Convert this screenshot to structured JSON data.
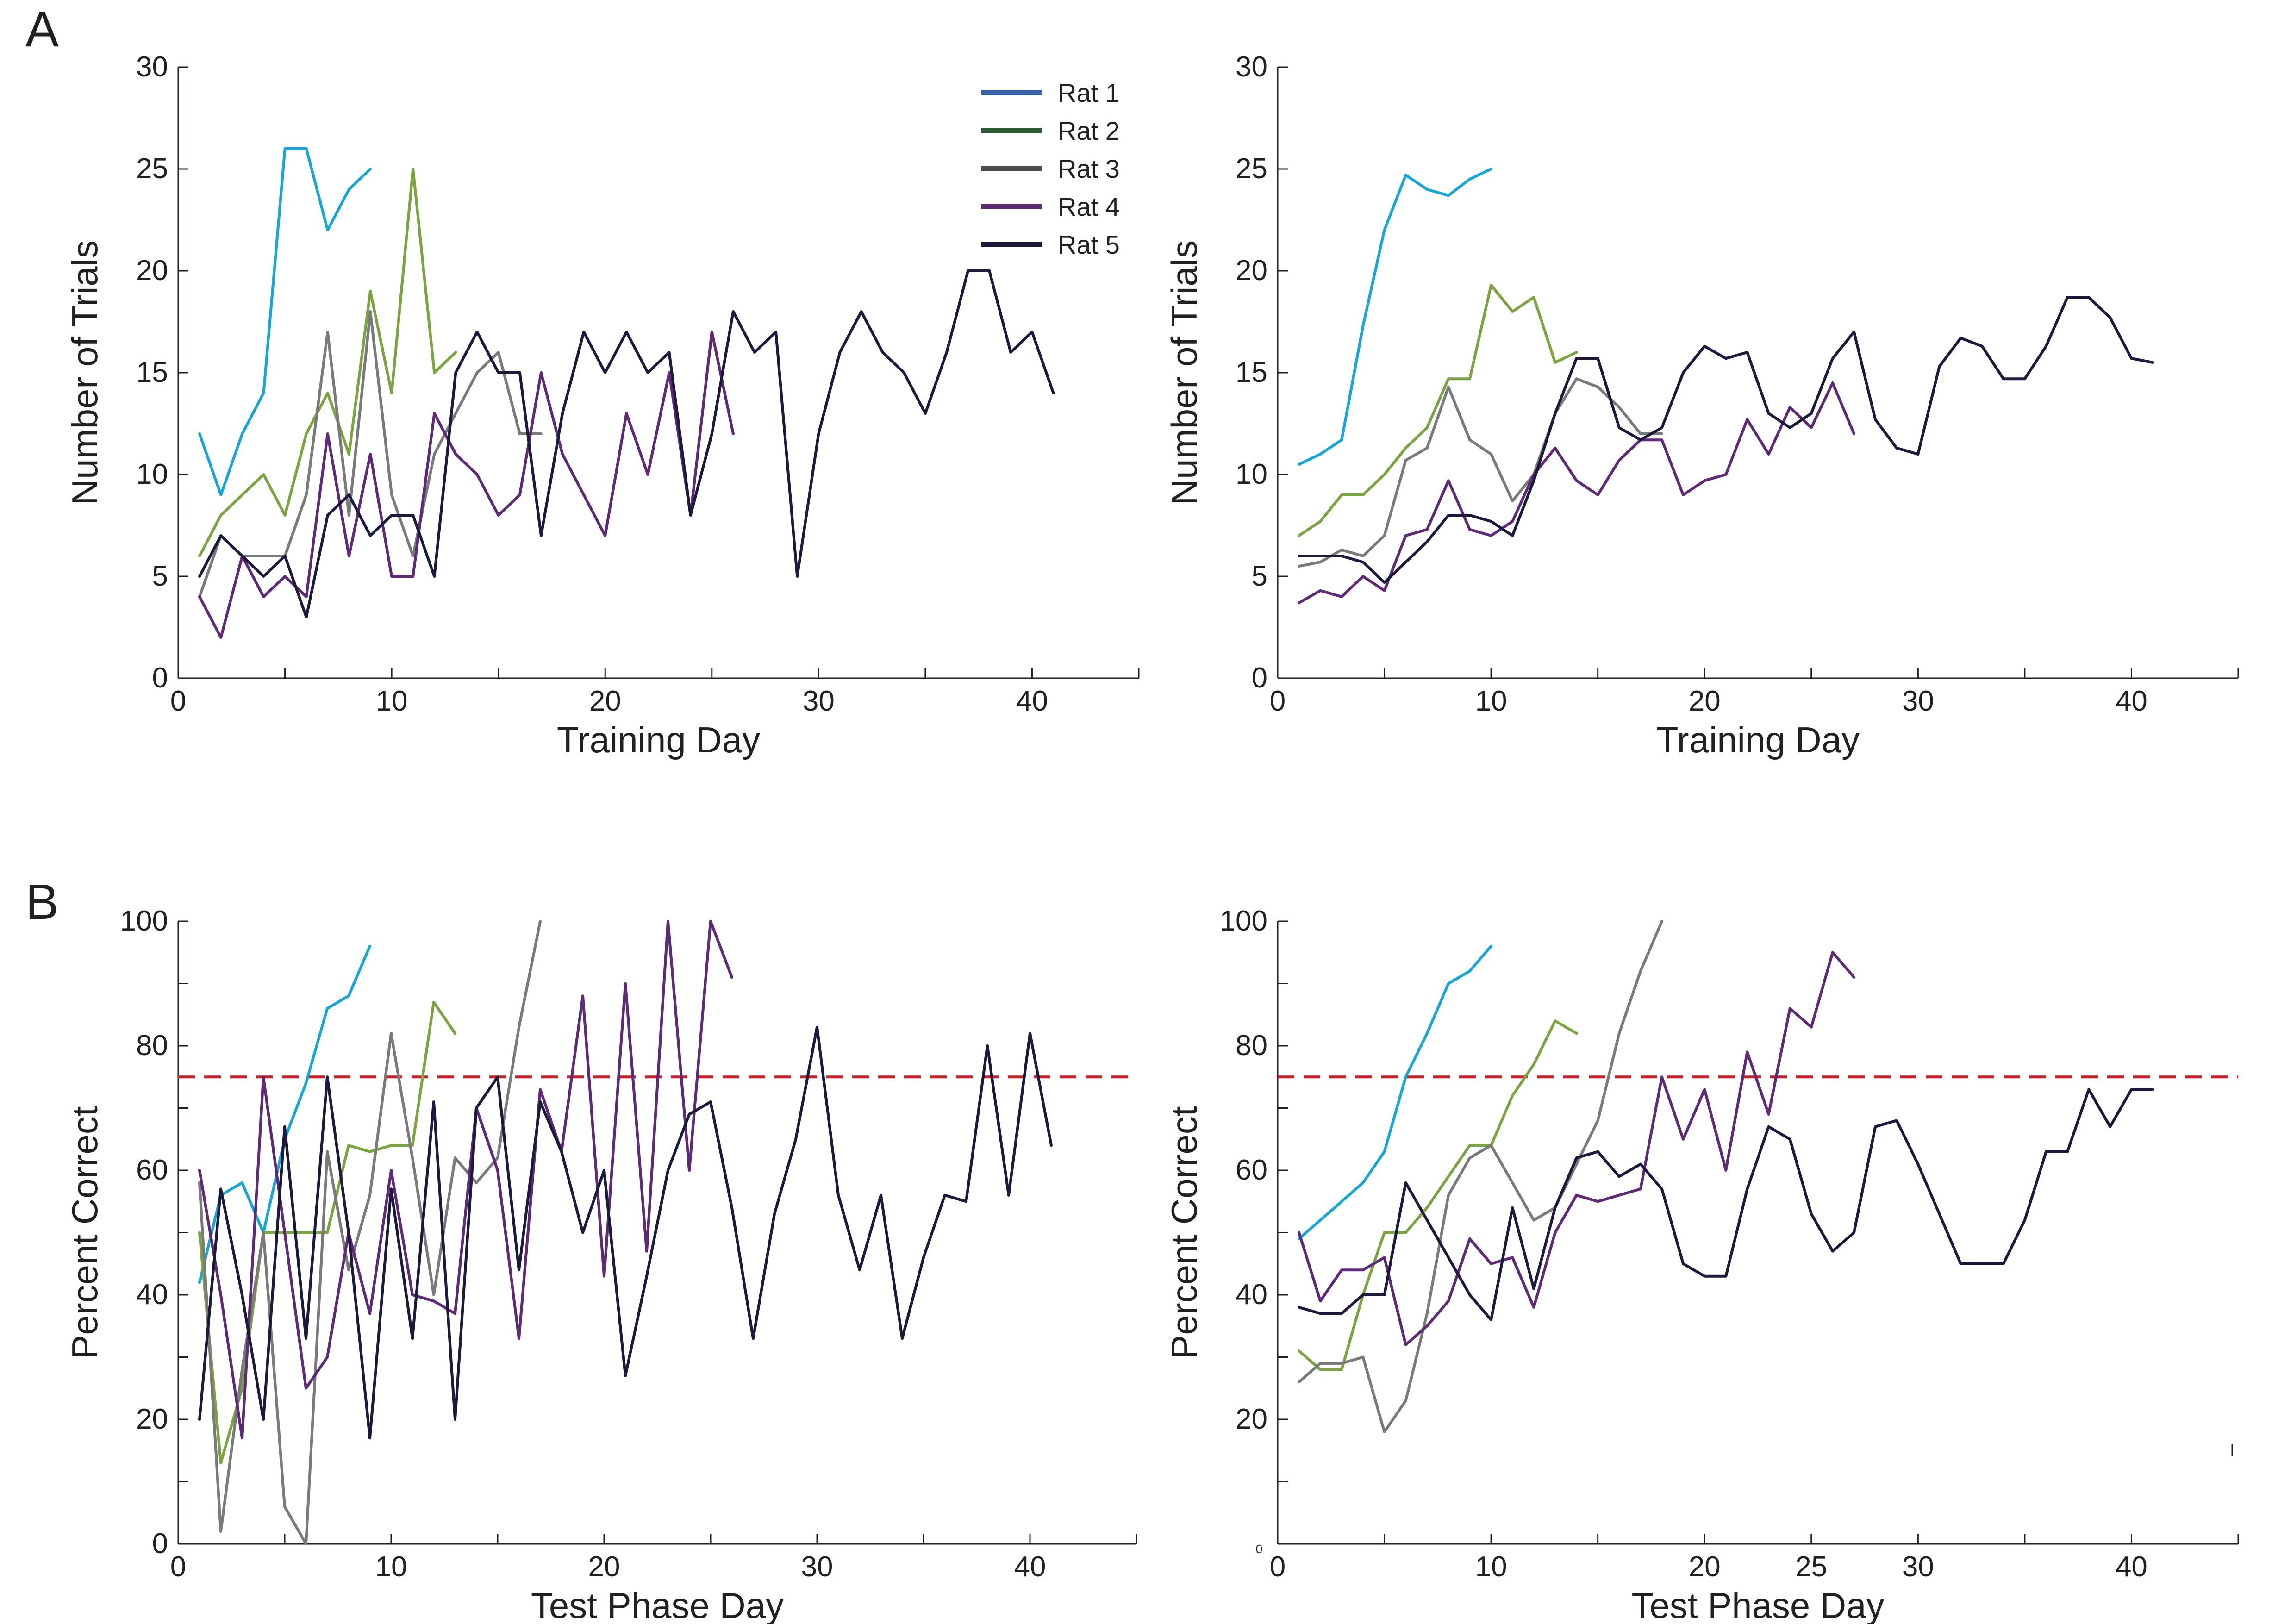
{
  "panel_labels": [
    "A",
    "B"
  ],
  "legend": {
    "entries": [
      {
        "label": "Rat 1",
        "color": "#3c64a8"
      },
      {
        "label": "Rat 2",
        "color": "#2f5a36"
      },
      {
        "label": "Rat 3",
        "color": "#4d4d4f"
      },
      {
        "label": "Rat 4",
        "color": "#5a2d6e"
      },
      {
        "label": "Rat 5",
        "color": "#1c1c3a"
      }
    ]
  },
  "series_colors": [
    "#16a7d8",
    "#7ba340",
    "#7a7a7a",
    "#5e2a77",
    "#1b1a3d"
  ],
  "threshold_color": "#c8202a",
  "chart_data": [
    {
      "id": "A-left",
      "type": "line",
      "title": "",
      "xlabel": "Training Day",
      "ylabel": "Number of Trials",
      "xlim": [
        0,
        45
      ],
      "ylim": [
        0,
        30
      ],
      "xticks": [
        0,
        10,
        20,
        30,
        40
      ],
      "yticks": [
        0,
        5,
        10,
        15,
        20,
        25,
        30
      ],
      "legend_position": "top-right",
      "series": [
        {
          "name": "Rat 1",
          "x": [
            1,
            2,
            3,
            4,
            5,
            6,
            7,
            8,
            9
          ],
          "y": [
            12,
            9,
            12,
            14,
            26,
            26,
            22,
            24,
            25
          ]
        },
        {
          "name": "Rat 2",
          "x": [
            1,
            2,
            3,
            4,
            5,
            6,
            7,
            8,
            9,
            10,
            11,
            12,
            13
          ],
          "y": [
            6,
            8,
            9,
            10,
            8,
            12,
            14,
            11,
            19,
            14,
            25,
            15,
            16
          ]
        },
        {
          "name": "Rat 3",
          "x": [
            1,
            2,
            3,
            4,
            5,
            6,
            7,
            8,
            9,
            10,
            11,
            12,
            13,
            14,
            15,
            16,
            17
          ],
          "y": [
            4,
            7,
            6,
            6,
            6,
            9,
            17,
            8,
            18,
            9,
            6,
            11,
            13,
            15,
            16,
            12,
            12
          ]
        },
        {
          "name": "Rat 4",
          "x": [
            1,
            2,
            3,
            4,
            5,
            6,
            7,
            8,
            9,
            10,
            11,
            12,
            13,
            14,
            15,
            16,
            17,
            18,
            19,
            20,
            21,
            22,
            23,
            24,
            25,
            26
          ],
          "y": [
            4,
            2,
            6,
            4,
            5,
            4,
            12,
            6,
            11,
            5,
            5,
            13,
            11,
            10,
            8,
            9,
            15,
            11,
            9,
            7,
            13,
            10,
            15,
            8,
            17,
            12
          ]
        },
        {
          "name": "Rat 5",
          "x": [
            1,
            2,
            3,
            4,
            5,
            6,
            7,
            8,
            9,
            10,
            11,
            12,
            13,
            14,
            15,
            16,
            17,
            18,
            19,
            20,
            21,
            22,
            23,
            24,
            25,
            26,
            27,
            28,
            29,
            30,
            31,
            32,
            33,
            34,
            35,
            36,
            37,
            38,
            39,
            40,
            41
          ],
          "y": [
            5,
            7,
            6,
            5,
            6,
            3,
            8,
            9,
            7,
            8,
            8,
            5,
            15,
            17,
            15,
            15,
            7,
            13,
            17,
            15,
            17,
            15,
            16,
            8,
            12,
            18,
            16,
            17,
            5,
            12,
            16,
            18,
            16,
            15,
            13,
            16,
            20,
            20,
            16,
            17,
            14
          ]
        }
      ]
    },
    {
      "id": "A-right",
      "type": "line",
      "title": "",
      "xlabel": "Training Day",
      "ylabel": "Number of Trials",
      "xlim": [
        0,
        45
      ],
      "ylim": [
        0,
        30
      ],
      "xticks": [
        0,
        10,
        20,
        30,
        40
      ],
      "yticks": [
        0,
        5,
        10,
        15,
        20,
        25,
        30
      ],
      "series": [
        {
          "name": "Rat 1",
          "x": [
            1,
            2,
            3,
            4,
            5,
            6,
            7,
            8,
            9,
            10
          ],
          "y": [
            10.5,
            11,
            11.7,
            17.3,
            22,
            24.7,
            24,
            23.7,
            24.5,
            25
          ]
        },
        {
          "name": "Rat 2",
          "x": [
            1,
            2,
            3,
            4,
            5,
            6,
            7,
            8,
            9,
            10,
            11,
            12,
            13,
            14
          ],
          "y": [
            7,
            7.7,
            9,
            9,
            10,
            11.3,
            12.3,
            14.7,
            14.7,
            19.3,
            18,
            18.7,
            15.5,
            16
          ]
        },
        {
          "name": "Rat 3",
          "x": [
            1,
            2,
            3,
            4,
            5,
            6,
            7,
            8,
            9,
            10,
            11,
            12,
            13,
            14,
            15,
            16,
            17,
            18
          ],
          "y": [
            5.5,
            5.7,
            6.3,
            6,
            7,
            10.7,
            11.3,
            14.3,
            11.7,
            11,
            8.7,
            10,
            13,
            14.7,
            14.3,
            13.3,
            12,
            12
          ]
        },
        {
          "name": "Rat 4",
          "x": [
            1,
            2,
            3,
            4,
            5,
            6,
            7,
            8,
            9,
            10,
            11,
            12,
            13,
            14,
            15,
            16,
            17,
            18,
            19,
            20,
            21,
            22,
            23,
            24,
            25,
            26,
            27
          ],
          "y": [
            3.7,
            4.3,
            4,
            5,
            4.3,
            7,
            7.3,
            9.7,
            7.3,
            7,
            7.7,
            10,
            11.3,
            9.7,
            9,
            10.7,
            11.7,
            11.7,
            9,
            9.7,
            10,
            12.7,
            11,
            13.3,
            12.3,
            14.5,
            12
          ]
        },
        {
          "name": "Rat 5",
          "x": [
            1,
            2,
            3,
            4,
            5,
            6,
            7,
            8,
            9,
            10,
            11,
            12,
            13,
            14,
            15,
            16,
            17,
            18,
            19,
            20,
            21,
            22,
            23,
            24,
            25,
            26,
            27,
            28,
            29,
            30,
            31,
            32,
            33,
            34,
            35,
            36,
            37,
            38,
            39,
            40,
            41
          ],
          "y": [
            6,
            6,
            6,
            5.7,
            4.7,
            5.7,
            6.7,
            8,
            8,
            7.7,
            7,
            9.7,
            13,
            15.7,
            15.7,
            12.3,
            11.7,
            12.3,
            15,
            16.3,
            15.7,
            16,
            13,
            12.3,
            13,
            15.7,
            17,
            12.7,
            11.3,
            11,
            15.3,
            16.7,
            16.3,
            14.7,
            14.7,
            16.3,
            18.7,
            18.7,
            17.7,
            15.7,
            15.5
          ]
        }
      ]
    },
    {
      "id": "B-left",
      "type": "line",
      "title": "",
      "xlabel": "Test Phase Day",
      "ylabel": "Percent Correct",
      "xlim": [
        0,
        45
      ],
      "ylim": [
        0,
        100
      ],
      "xticks": [
        0,
        10,
        20,
        30,
        40
      ],
      "yticks": [
        0,
        20,
        40,
        60,
        80,
        100
      ],
      "threshold": 75,
      "series": [
        {
          "name": "Rat 1",
          "x": [
            1,
            2,
            3,
            4,
            5,
            6,
            7,
            8,
            9
          ],
          "y": [
            42,
            56,
            58,
            50,
            65,
            74,
            86,
            88,
            96
          ]
        },
        {
          "name": "Rat 2",
          "x": [
            1,
            2,
            3,
            4,
            5,
            6,
            7,
            8,
            9,
            10,
            11,
            12,
            13
          ],
          "y": [
            50,
            13,
            25,
            50,
            50,
            50,
            50,
            64,
            63,
            64,
            64,
            87,
            82
          ]
        },
        {
          "name": "Rat 3",
          "x": [
            1,
            2,
            3,
            4,
            5,
            6,
            7,
            8,
            9,
            10,
            11,
            12,
            13,
            14,
            15,
            16,
            17
          ],
          "y": [
            58,
            2,
            28,
            50,
            6,
            0,
            63,
            44,
            56,
            82,
            62,
            40,
            62,
            58,
            62,
            83,
            100
          ]
        },
        {
          "name": "Rat 4",
          "x": [
            1,
            2,
            3,
            4,
            5,
            6,
            7,
            8,
            9,
            10,
            11,
            12,
            13,
            14,
            15,
            16,
            17,
            18,
            19,
            20,
            21,
            22,
            23,
            24,
            25,
            26
          ],
          "y": [
            60,
            40,
            17,
            75,
            50,
            25,
            30,
            50,
            37,
            60,
            40,
            39,
            37,
            70,
            60,
            33,
            73,
            63,
            88,
            43,
            90,
            47,
            100,
            60,
            100,
            91
          ]
        },
        {
          "name": "Rat 5",
          "x": [
            1,
            2,
            3,
            4,
            5,
            6,
            7,
            8,
            9,
            10,
            11,
            12,
            13,
            14,
            15,
            16,
            17,
            18,
            19,
            20,
            21,
            22,
            23,
            24,
            25,
            26,
            27,
            28,
            29,
            30,
            31,
            32,
            33,
            34,
            35,
            36,
            37,
            38,
            39,
            40,
            41
          ],
          "y": [
            20,
            57,
            40,
            20,
            67,
            33,
            75,
            50,
            17,
            57,
            33,
            71,
            20,
            70,
            75,
            44,
            71,
            63,
            50,
            60,
            27,
            43,
            60,
            69,
            71,
            54,
            33,
            53,
            65,
            83,
            56,
            44,
            56,
            33,
            46,
            56,
            55,
            80,
            56,
            82,
            64
          ]
        }
      ]
    },
    {
      "id": "B-right",
      "type": "line",
      "title": "",
      "xlabel": "Test Phase Day",
      "ylabel": "Percent Correct",
      "xlim": [
        0,
        45
      ],
      "ylim": [
        0,
        100
      ],
      "xticks": [
        0,
        10,
        20,
        25,
        30,
        40
      ],
      "xticklabels": [
        "0",
        "10",
        "20",
        "25",
        "30",
        "40"
      ],
      "yticks": [
        20,
        40,
        60,
        80,
        100
      ],
      "origin_label": "0",
      "threshold": 75,
      "series": [
        {
          "name": "Rat 1",
          "x": [
            1,
            2,
            3,
            4,
            5,
            6,
            7,
            8,
            9,
            10
          ],
          "y": [
            49,
            52,
            55,
            58,
            63,
            75,
            82,
            90,
            92,
            96
          ]
        },
        {
          "name": "Rat 2",
          "x": [
            1,
            2,
            3,
            4,
            5,
            6,
            7,
            8,
            9,
            10,
            11,
            12,
            13,
            14
          ],
          "y": [
            31,
            28,
            28,
            40,
            50,
            50,
            54,
            59,
            64,
            64,
            72,
            77,
            84,
            82
          ]
        },
        {
          "name": "Rat 3",
          "x": [
            1,
            2,
            3,
            4,
            5,
            6,
            7,
            8,
            9,
            10,
            11,
            12,
            13,
            14,
            15,
            16,
            17,
            18
          ],
          "y": [
            26,
            29,
            29,
            30,
            18,
            23,
            37,
            56,
            62,
            64,
            58,
            52,
            54,
            61,
            68,
            82,
            92,
            100
          ]
        },
        {
          "name": "Rat 4",
          "x": [
            1,
            2,
            3,
            4,
            5,
            6,
            7,
            8,
            9,
            10,
            11,
            12,
            13,
            14,
            15,
            16,
            17,
            18,
            19,
            20,
            21,
            22,
            23,
            24,
            25,
            26,
            27
          ],
          "y": [
            50,
            39,
            44,
            44,
            46,
            32,
            35,
            39,
            49,
            45,
            46,
            38,
            50,
            56,
            55,
            56,
            57,
            75,
            65,
            73,
            60,
            79,
            69,
            86,
            83,
            95,
            91
          ]
        },
        {
          "name": "Rat 5",
          "x": [
            1,
            2,
            3,
            4,
            5,
            6,
            7,
            8,
            9,
            10,
            11,
            12,
            13,
            14,
            15,
            16,
            17,
            18,
            19,
            20,
            21,
            22,
            23,
            24,
            25,
            26,
            27,
            28,
            29,
            30,
            31,
            32,
            33,
            34,
            35,
            36,
            37,
            38,
            39,
            40,
            41
          ],
          "y": [
            38,
            37,
            37,
            40,
            40,
            58,
            52,
            46,
            40,
            36,
            54,
            41,
            54,
            62,
            63,
            59,
            61,
            57,
            45,
            43,
            43,
            57,
            67,
            65,
            53,
            47,
            50,
            67,
            68,
            61,
            53,
            45,
            45,
            45,
            52,
            63,
            63,
            73,
            67,
            73,
            73
          ]
        }
      ]
    }
  ]
}
